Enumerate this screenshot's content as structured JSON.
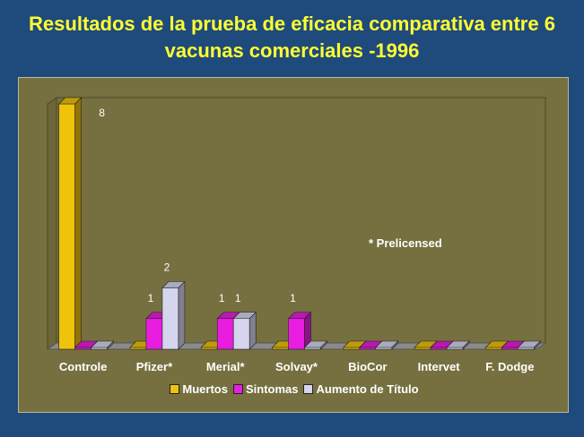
{
  "title": {
    "line1": "Resultados de la prueba de eficacia comparativa entre 6",
    "line2": "vacunas comerciales -1996"
  },
  "annotation": "* Prelicensed",
  "colors": {
    "background": "#1f4a7c",
    "title": "#ffff33",
    "plot_area": "#767040",
    "floor": "#8a8a8a"
  },
  "chart_data": {
    "type": "bar",
    "style": "3d-clustered",
    "categories": [
      "Controle",
      "Pfizer*",
      "Merial*",
      "Solvay*",
      "BioCor",
      "Intervet",
      "F. Dodge"
    ],
    "series": [
      {
        "name": "Muertos",
        "color": "#f0c20a",
        "values": [
          8,
          0,
          0,
          0,
          0,
          0,
          0
        ]
      },
      {
        "name": "Sintomas",
        "color": "#e81de0",
        "values": [
          0,
          1,
          1,
          1,
          0,
          0,
          0
        ]
      },
      {
        "name": "Aumento de Título",
        "color": "#d5d5ee",
        "values": [
          0,
          2,
          1,
          0,
          0,
          0,
          0
        ]
      }
    ],
    "data_labels": [
      {
        "series": 0,
        "category": 0,
        "text": "8"
      },
      {
        "series": 1,
        "category": 1,
        "text": "1"
      },
      {
        "series": 2,
        "category": 1,
        "text": "2"
      },
      {
        "series": 1,
        "category": 2,
        "text": "1"
      },
      {
        "series": 2,
        "category": 2,
        "text": "1"
      },
      {
        "series": 1,
        "category": 3,
        "text": "1"
      }
    ],
    "ylim": [
      0,
      8
    ],
    "grid": false,
    "legend_position": "bottom"
  }
}
